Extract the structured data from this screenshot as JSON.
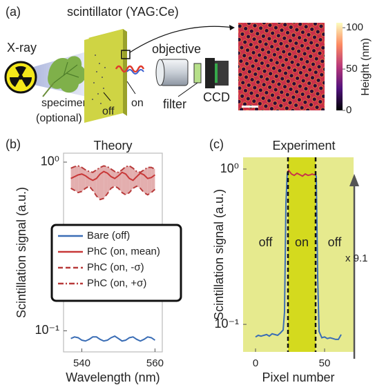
{
  "panel_a": {
    "label": "(a)",
    "scintillator": "scintillator (YAG:Ce)",
    "xray": "X-ray",
    "specimen": [
      "specimen",
      "(optional)"
    ],
    "off": "off",
    "on": "on",
    "objective": "objective",
    "filter": "filter",
    "ccd": "CCD",
    "colorbar": {
      "title": "Height (nm)",
      "lim": [
        0,
        106
      ],
      "ticks": [
        0,
        50,
        100
      ]
    }
  },
  "chart_data": [
    {
      "type": "line",
      "panel_label": "(b)",
      "title": "Theory",
      "xlabel": "Wavelength (nm)",
      "ylabel": "Scintillation signal (a.u.)",
      "log_y": true,
      "xlim": [
        535,
        562
      ],
      "ylim": [
        0.075,
        1.13
      ],
      "xticks": [
        540,
        560
      ],
      "yticks": [
        {
          "value": 1,
          "label": "10⁰"
        },
        {
          "value": 0.1,
          "label": "10⁻¹"
        }
      ],
      "legend": "center",
      "band_color": "#dc9a9a",
      "x": [
        537,
        538,
        539,
        540,
        541,
        542,
        543,
        544,
        545,
        546,
        547,
        548,
        549,
        550,
        551,
        552,
        553,
        554,
        555,
        556,
        557,
        558,
        559,
        560
      ],
      "series": [
        {
          "name": "Bare (off)",
          "color": "#3a6db5",
          "dash": "solid",
          "values": [
            0.09,
            0.092,
            0.091,
            0.088,
            0.087,
            0.089,
            0.092,
            0.092,
            0.089,
            0.087,
            0.088,
            0.091,
            0.093,
            0.09,
            0.087,
            0.088,
            0.091,
            0.092,
            0.089,
            0.087,
            0.089,
            0.092,
            0.091,
            0.088
          ]
        },
        {
          "name": "PhC (on, mean)",
          "color": "#c83838",
          "dash": "solid",
          "values": [
            0.8,
            0.82,
            0.84,
            0.85,
            0.83,
            0.8,
            0.78,
            0.8,
            0.85,
            0.88,
            0.86,
            0.82,
            0.8,
            0.83,
            0.87,
            0.85,
            0.8,
            0.78,
            0.82,
            0.86,
            0.84,
            0.8,
            0.81,
            0.84
          ]
        },
        {
          "name": "PhC (on, -σ)",
          "color": "#b83a3a",
          "dash": "dashed",
          "values": [
            0.7,
            0.68,
            0.66,
            0.67,
            0.7,
            0.72,
            0.68,
            0.63,
            0.6,
            0.61,
            0.65,
            0.7,
            0.72,
            0.7,
            0.66,
            0.64,
            0.66,
            0.7,
            0.72,
            0.7,
            0.66,
            0.64,
            0.66,
            0.69
          ]
        },
        {
          "name": "PhC (on, +σ)",
          "color": "#b83a3a",
          "dash": "dashdot",
          "values": [
            0.92,
            0.94,
            0.95,
            0.93,
            0.9,
            0.88,
            0.87,
            0.9,
            0.93,
            0.95,
            0.94,
            0.91,
            0.88,
            0.87,
            0.9,
            0.94,
            0.95,
            0.92,
            0.88,
            0.87,
            0.9,
            0.93,
            0.93,
            0.91
          ]
        }
      ]
    },
    {
      "type": "line",
      "panel_label": "(c)",
      "title": "Experiment",
      "xlabel": "Pixel number",
      "ylabel": "Scintillation signal (a.u.)",
      "log_y": true,
      "xlim": [
        -9,
        71
      ],
      "ylim": [
        0.0665,
        1.19
      ],
      "xticks": [
        0,
        50
      ],
      "yticks": [
        {
          "value": 1,
          "label": "10⁰"
        },
        {
          "value": 0.1,
          "label": "10⁻¹"
        }
      ],
      "regions": [
        {
          "label": "off",
          "range": [
            -9,
            23.5
          ],
          "color": "#e6ea8e"
        },
        {
          "label": "on",
          "range": [
            23.5,
            43.5
          ],
          "color": "#d4da1e"
        },
        {
          "label": "off",
          "range": [
            43.5,
            71
          ],
          "color": "#e6ea8e"
        }
      ],
      "vlines": [
        23.5,
        43.5
      ],
      "annotation": "x 9.1",
      "x": [
        0,
        2,
        4,
        6,
        8,
        10,
        12,
        14,
        16,
        18,
        20,
        21,
        22,
        23,
        24,
        26,
        28,
        30,
        32,
        34,
        36,
        38,
        40,
        41,
        42,
        43,
        44,
        45,
        46,
        48,
        50,
        52,
        54,
        56,
        58,
        60,
        62
      ],
      "series": [
        {
          "color": "#3a6db5",
          "dash": "solid",
          "values": [
            0.083,
            0.085,
            0.084,
            0.085,
            0.086,
            0.084,
            0.087,
            0.086,
            0.085,
            0.088,
            0.092,
            0.12,
            0.6,
            0.95,
            null,
            null,
            null,
            null,
            null,
            null,
            null,
            null,
            null,
            null,
            null,
            0.92,
            0.9,
            0.2,
            0.09,
            0.082,
            0.083,
            0.081,
            0.082,
            0.081,
            0.08,
            0.08,
            0.086
          ]
        },
        {
          "color": "#c8344a",
          "dash": "solid",
          "values": [
            null,
            null,
            null,
            null,
            null,
            null,
            null,
            null,
            null,
            null,
            null,
            null,
            null,
            0.95,
            0.98,
            0.93,
            0.91,
            0.94,
            0.92,
            0.9,
            0.93,
            0.91,
            0.92,
            0.93,
            0.92,
            0.92,
            null,
            null,
            null,
            null,
            null,
            null,
            null,
            null,
            null,
            null,
            null
          ]
        }
      ]
    }
  ]
}
